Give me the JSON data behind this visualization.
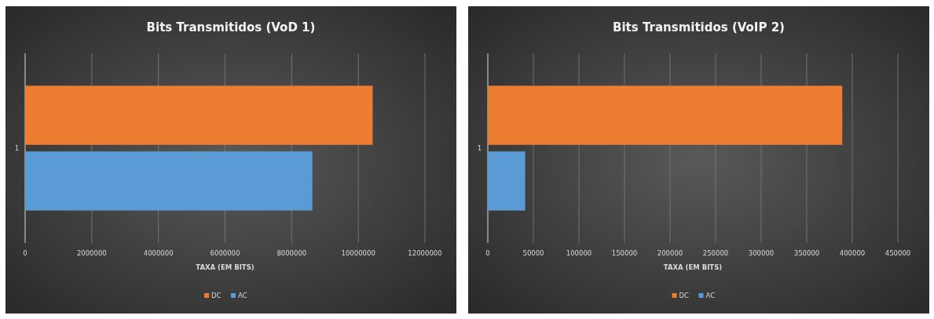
{
  "chart_data": [
    {
      "type": "bar",
      "orientation": "horizontal",
      "title": "Bits Transmitidos (VoD 1)",
      "xlabel": "TAXA (EM BITS)",
      "categories": [
        "1"
      ],
      "series": [
        {
          "name": "DC",
          "color": "#ed7d31",
          "values": [
            10430000
          ]
        },
        {
          "name": "AC",
          "color": "#5b9bd5",
          "values": [
            8620000
          ]
        }
      ],
      "xlim": [
        0,
        12000000
      ],
      "xticks": [
        0,
        2000000,
        4000000,
        6000000,
        8000000,
        10000000,
        12000000
      ],
      "grid": "x",
      "legend": "bottom"
    },
    {
      "type": "bar",
      "orientation": "horizontal",
      "title": "Bits Transmitidos (VoIP 2)",
      "xlabel": "TAXA (EM BITS)",
      "categories": [
        "1"
      ],
      "series": [
        {
          "name": "DC",
          "color": "#ed7d31",
          "values": [
            389000
          ]
        },
        {
          "name": "AC",
          "color": "#5b9bd5",
          "values": [
            41000
          ]
        }
      ],
      "xlim": [
        0,
        450000
      ],
      "xticks": [
        0,
        50000,
        100000,
        150000,
        200000,
        250000,
        300000,
        350000,
        400000,
        450000
      ],
      "grid": "x",
      "legend": "bottom"
    }
  ]
}
